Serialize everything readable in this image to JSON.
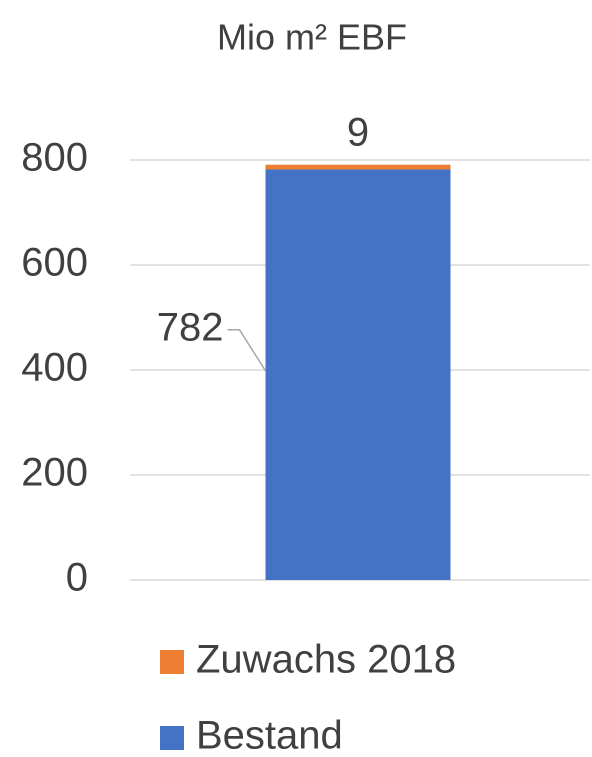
{
  "chart_data": {
    "type": "stacked_bar",
    "title": "Mio m² EBF",
    "categories": [
      null
    ],
    "series": [
      {
        "name": "Bestand",
        "color": "#4472c4",
        "values": [
          782
        ]
      },
      {
        "name": "Zuwachs 2018",
        "color": "#ed7d31",
        "values": [
          9
        ]
      }
    ],
    "ylim": [
      0,
      800
    ],
    "yticks": [
      0,
      200,
      400,
      600,
      800
    ],
    "grid": true,
    "legend": "bottom"
  }
}
